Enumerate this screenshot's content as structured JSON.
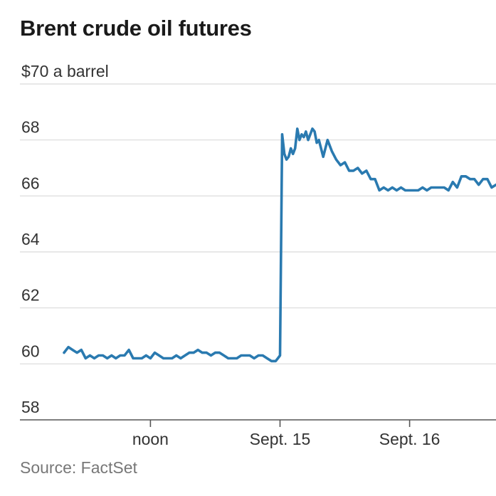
{
  "title": "Brent crude oil futures",
  "source": "Source: FactSet",
  "chart_data": {
    "type": "line",
    "title": "Brent crude oil futures",
    "ylabel": "",
    "xlabel": "",
    "y_unit_label": "$70 a barrel",
    "ylim": [
      58,
      70
    ],
    "grid": true,
    "legend": "none",
    "y_ticks": [
      {
        "value": 70,
        "label": "$70 a barrel"
      },
      {
        "value": 68,
        "label": "68"
      },
      {
        "value": 66,
        "label": "66"
      },
      {
        "value": 64,
        "label": "64"
      },
      {
        "value": 62,
        "label": "62"
      },
      {
        "value": 60,
        "label": "60"
      },
      {
        "value": 58,
        "label": "58"
      }
    ],
    "x_ticks": [
      {
        "t": 0.2,
        "label": "noon"
      },
      {
        "t": 0.5,
        "label": "Sept. 15"
      },
      {
        "t": 0.8,
        "label": "Sept. 16"
      }
    ],
    "color": "#2a7ab0",
    "series": [
      {
        "x": [
          0.0,
          0.01,
          0.02,
          0.03,
          0.04,
          0.05,
          0.06,
          0.07,
          0.08,
          0.09,
          0.1,
          0.11,
          0.12,
          0.13,
          0.14,
          0.15,
          0.16,
          0.17,
          0.18,
          0.19,
          0.2,
          0.21,
          0.22,
          0.23,
          0.24,
          0.25,
          0.26,
          0.27,
          0.28,
          0.29,
          0.3,
          0.31,
          0.32,
          0.33,
          0.34,
          0.35,
          0.36,
          0.37,
          0.38,
          0.39,
          0.4,
          0.41,
          0.42,
          0.43,
          0.44,
          0.45,
          0.46,
          0.47,
          0.48,
          0.49,
          0.495,
          0.5,
          0.505,
          0.51,
          0.515,
          0.52,
          0.525,
          0.53,
          0.535,
          0.54,
          0.545,
          0.55,
          0.555,
          0.56,
          0.565,
          0.57,
          0.575,
          0.58,
          0.585,
          0.59,
          0.6,
          0.61,
          0.62,
          0.63,
          0.64,
          0.65,
          0.66,
          0.67,
          0.68,
          0.69,
          0.7,
          0.71,
          0.72,
          0.73,
          0.74,
          0.75,
          0.76,
          0.77,
          0.78,
          0.79,
          0.8,
          0.81,
          0.82,
          0.83,
          0.84,
          0.85,
          0.86,
          0.87,
          0.88,
          0.89,
          0.9,
          0.91,
          0.92,
          0.93,
          0.94,
          0.95,
          0.96,
          0.97,
          0.98,
          0.99,
          1.0
        ],
        "y": [
          60.4,
          60.6,
          60.5,
          60.4,
          60.5,
          60.2,
          60.3,
          60.2,
          60.3,
          60.3,
          60.2,
          60.3,
          60.2,
          60.3,
          60.3,
          60.5,
          60.2,
          60.2,
          60.2,
          60.3,
          60.2,
          60.4,
          60.3,
          60.2,
          60.2,
          60.2,
          60.3,
          60.2,
          60.3,
          60.4,
          60.4,
          60.5,
          60.4,
          60.4,
          60.3,
          60.4,
          60.4,
          60.3,
          60.2,
          60.2,
          60.2,
          60.3,
          60.3,
          60.3,
          60.2,
          60.3,
          60.3,
          60.2,
          60.1,
          60.1,
          60.2,
          60.3,
          68.2,
          67.5,
          67.3,
          67.4,
          67.7,
          67.5,
          67.7,
          68.4,
          68.0,
          68.2,
          68.1,
          68.3,
          68.0,
          68.2,
          68.4,
          68.3,
          67.9,
          68.0,
          67.4,
          68.0,
          67.6,
          67.3,
          67.1,
          67.2,
          66.9,
          66.9,
          67.0,
          66.8,
          66.9,
          66.6,
          66.6,
          66.2,
          66.3,
          66.2,
          66.3,
          66.2,
          66.3,
          66.2,
          66.2,
          66.2,
          66.2,
          66.3,
          66.2,
          66.3,
          66.3,
          66.3,
          66.3,
          66.2,
          66.5,
          66.3,
          66.7,
          66.7,
          66.6,
          66.6,
          66.4,
          66.6,
          66.6,
          66.3,
          66.4
        ]
      }
    ]
  }
}
